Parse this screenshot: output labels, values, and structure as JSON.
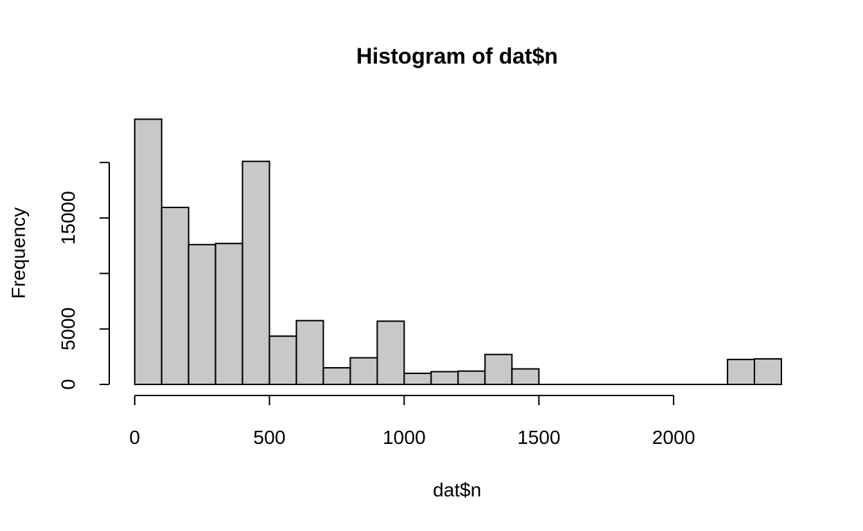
{
  "chart_data": {
    "type": "bar",
    "title": "Histogram of dat$n",
    "xlabel": "dat$n",
    "ylabel": "Frequency",
    "bin_width": 100,
    "x_start": 0,
    "bins": [
      {
        "from": 0,
        "to": 100,
        "count": 23900
      },
      {
        "from": 100,
        "to": 200,
        "count": 15950
      },
      {
        "from": 200,
        "to": 300,
        "count": 12600
      },
      {
        "from": 300,
        "to": 400,
        "count": 12700
      },
      {
        "from": 400,
        "to": 500,
        "count": 20100
      },
      {
        "from": 500,
        "to": 600,
        "count": 4350
      },
      {
        "from": 600,
        "to": 700,
        "count": 5750
      },
      {
        "from": 700,
        "to": 800,
        "count": 1500
      },
      {
        "from": 800,
        "to": 900,
        "count": 2400
      },
      {
        "from": 900,
        "to": 1000,
        "count": 5700
      },
      {
        "from": 1000,
        "to": 1100,
        "count": 1000
      },
      {
        "from": 1100,
        "to": 1200,
        "count": 1150
      },
      {
        "from": 1200,
        "to": 1300,
        "count": 1200
      },
      {
        "from": 1300,
        "to": 1400,
        "count": 2700
      },
      {
        "from": 1400,
        "to": 1500,
        "count": 1400
      },
      {
        "from": 1500,
        "to": 1600,
        "count": 0
      },
      {
        "from": 1600,
        "to": 1700,
        "count": 0
      },
      {
        "from": 1700,
        "to": 1800,
        "count": 0
      },
      {
        "from": 1800,
        "to": 1900,
        "count": 0
      },
      {
        "from": 1900,
        "to": 2000,
        "count": 0
      },
      {
        "from": 2000,
        "to": 2100,
        "count": 0
      },
      {
        "from": 2100,
        "to": 2200,
        "count": 0
      },
      {
        "from": 2200,
        "to": 2300,
        "count": 2250
      },
      {
        "from": 2300,
        "to": 2400,
        "count": 2300
      }
    ],
    "x_ticks": [
      0,
      500,
      1000,
      1500,
      2000
    ],
    "x_tick_labels": [
      "0",
      "500",
      "1000",
      "1500",
      "2000"
    ],
    "x_axis_range": [
      0,
      2000
    ],
    "y_ticks": [
      0,
      5000,
      10000,
      15000,
      20000
    ],
    "y_tick_labels": [
      "0",
      "5000",
      "",
      "15000",
      ""
    ],
    "xlim": [
      0,
      2400
    ],
    "ylim": [
      0,
      25000
    ],
    "bar_fill": "#c8c8c8",
    "grid": false
  }
}
